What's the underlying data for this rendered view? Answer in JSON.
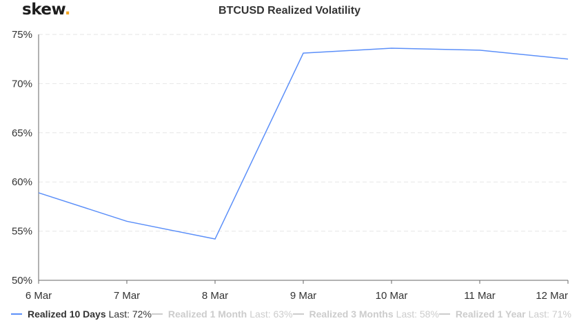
{
  "logo": {
    "text": "skew",
    "dot": "."
  },
  "chart_data": {
    "type": "line",
    "title": "BTCUSD Realized Volatility",
    "xlabel": "",
    "ylabel": "",
    "categories": [
      "6 Mar",
      "7 Mar",
      "8 Mar",
      "9 Mar",
      "10 Mar",
      "11 Mar",
      "12 Mar"
    ],
    "ylim": [
      50,
      75
    ],
    "yticks": [
      75,
      70,
      65,
      60,
      55,
      50
    ],
    "ytick_labels": [
      "75%",
      "70%",
      "65%",
      "60%",
      "55%",
      "50%"
    ],
    "grid": true,
    "legend_position": "bottom",
    "series": [
      {
        "name": "Realized 10 Days",
        "last_label": "Last: 72%",
        "color": "#5b8ff9",
        "visible": true,
        "values": [
          58.9,
          56.0,
          54.2,
          73.1,
          73.6,
          73.4,
          72.5
        ]
      },
      {
        "name": "Realized 1 Month",
        "last_label": "Last: 63%",
        "color": "#cccccc",
        "visible": false
      },
      {
        "name": "Realized 3 Months",
        "last_label": "Last: 58%",
        "color": "#cccccc",
        "visible": false
      },
      {
        "name": "Realized 1 Year",
        "last_label": "Last: 71%",
        "color": "#cccccc",
        "visible": false
      }
    ]
  }
}
